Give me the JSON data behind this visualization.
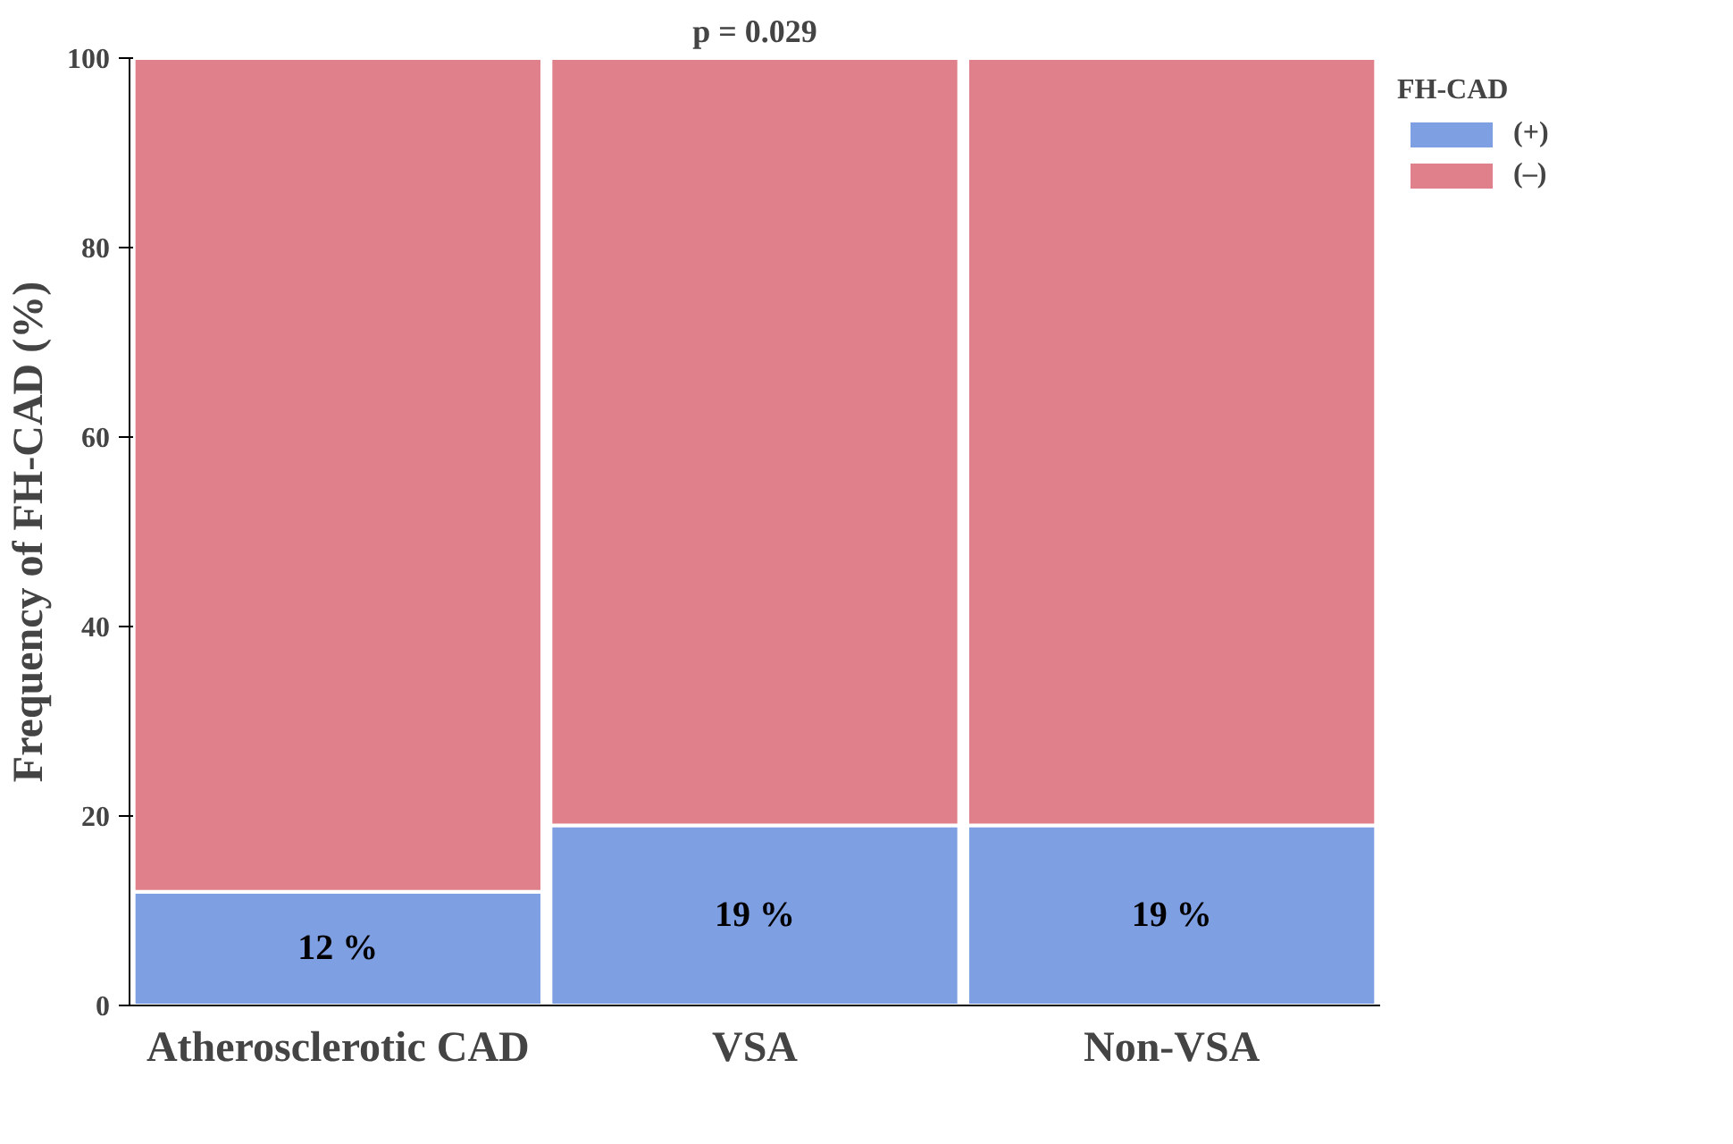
{
  "chart_data": {
    "type": "bar",
    "stacked": true,
    "title": "p = 0.029",
    "ylabel": "Frequency of FH-CAD (%)",
    "legend_title": "FH-CAD",
    "legend": "top right",
    "categories": [
      "Atherosclerotic CAD",
      "VSA",
      "Non-VSA"
    ],
    "series": [
      {
        "name": "(+)",
        "color": "#7f9fe3",
        "values": [
          12,
          19,
          19
        ],
        "value_labels": [
          "12 %",
          "19 %",
          "19 %"
        ]
      },
      {
        "name": "(–)",
        "color": "#e0808a",
        "values": [
          88,
          81,
          81
        ]
      }
    ],
    "ylim": [
      0,
      100
    ],
    "yticks": [
      0,
      20,
      40,
      60,
      80,
      100
    ],
    "grid": false
  }
}
